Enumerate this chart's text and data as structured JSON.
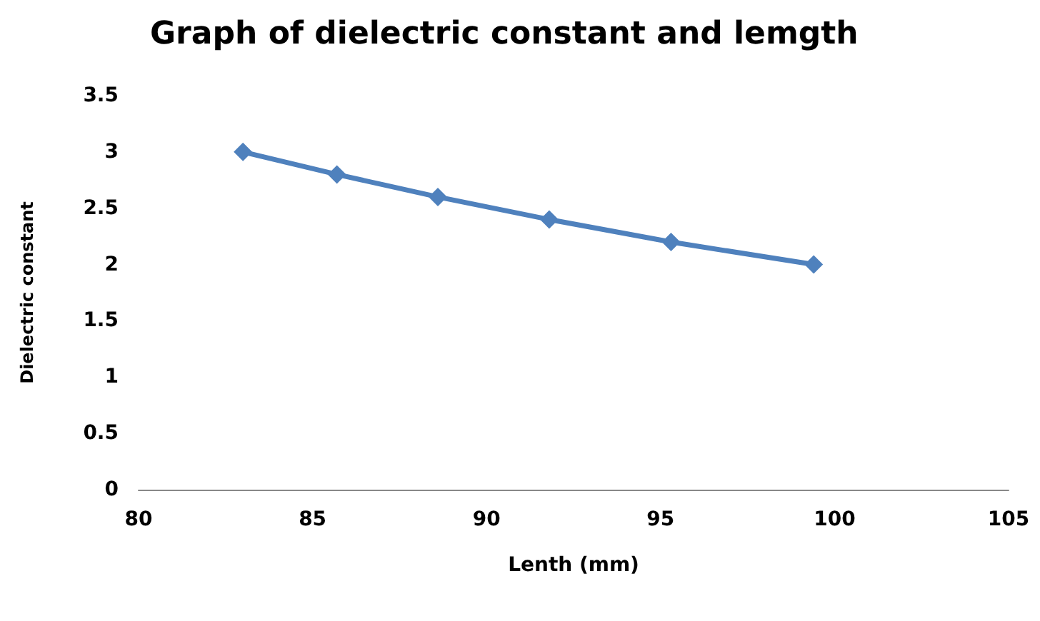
{
  "chart_data": {
    "type": "line",
    "title": "Graph of dielectric constant and lemgth",
    "xlabel": "Lenth (mm)",
    "ylabel": "Dielectric constant",
    "x": [
      83.0,
      85.7,
      88.6,
      91.8,
      95.3,
      99.4
    ],
    "series": [
      {
        "color": "#4f81bd",
        "values": [
          3.0,
          2.8,
          2.6,
          2.4,
          2.2,
          2.0
        ]
      }
    ],
    "xlim": [
      80,
      105
    ],
    "xticks": [
      80,
      85,
      90,
      95,
      100,
      105
    ],
    "ylim": [
      0,
      3.5
    ],
    "yticks": [
      0,
      0.5,
      1,
      1.5,
      2,
      2.5,
      3,
      3.5
    ],
    "grid": false,
    "marker": "diamond",
    "line_style": "solid"
  }
}
